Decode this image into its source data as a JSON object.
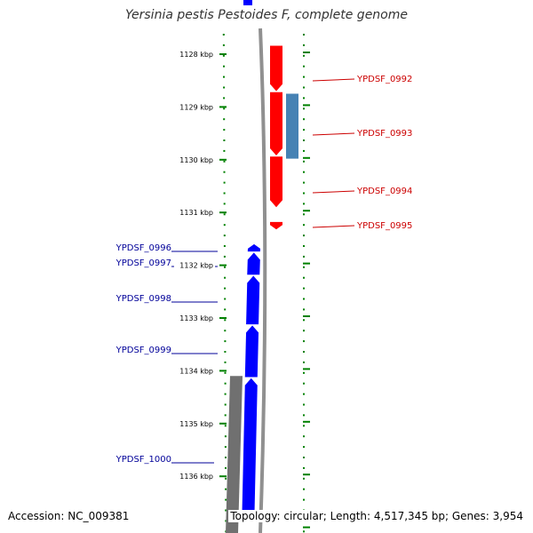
{
  "title": "Yersinia pestis Pestoides F, complete genome",
  "footer": {
    "accession_label": "Accession: NC_009381",
    "summary": "Topology: circular; Length: 4,517,345 bp; Genes: 3,954"
  },
  "colors": {
    "forward_gene": "#ff0000",
    "reverse_gene": "#0000ff",
    "forward_label": "#cc0000",
    "reverse_label": "#000099",
    "cds_feature": "#4682b4",
    "other_feature": "#707070",
    "ticks": "#008000",
    "backbone": "#909090"
  },
  "scale": {
    "unit": "kbp",
    "labels": [
      {
        "kbp": 1128,
        "text": "1128 kbp"
      },
      {
        "kbp": 1129,
        "text": "1129 kbp"
      },
      {
        "kbp": 1130,
        "text": "1130 kbp"
      },
      {
        "kbp": 1131,
        "text": "1131 kbp"
      },
      {
        "kbp": 1132,
        "text": "1132 kbp"
      },
      {
        "kbp": 1133,
        "text": "1133 kbp"
      },
      {
        "kbp": 1134,
        "text": "1134 kbp"
      },
      {
        "kbp": 1135,
        "text": "1135 kbp"
      },
      {
        "kbp": 1136,
        "text": "1136 kbp"
      }
    ]
  },
  "genes": [
    {
      "id": "YPDSF_0992",
      "label": "YPDSF_0992",
      "strand": "forward",
      "start_kbp": 1127.84,
      "end_kbp": 1128.7
    },
    {
      "id": "YPDSF_0993",
      "label": "YPDSF_0993",
      "strand": "forward",
      "start_kbp": 1128.72,
      "end_kbp": 1129.92
    },
    {
      "id": "YPDSF_0994",
      "label": "YPDSF_0994",
      "strand": "forward",
      "start_kbp": 1129.94,
      "end_kbp": 1130.9
    },
    {
      "id": "YPDSF_0995",
      "label": "YPDSF_0995",
      "strand": "forward",
      "start_kbp": 1131.18,
      "end_kbp": 1131.32
    },
    {
      "id": "YPDSF_0996",
      "label": "YPDSF_0996",
      "strand": "reverse",
      "start_kbp": 1131.6,
      "end_kbp": 1131.74
    },
    {
      "id": "YPDSF_0997",
      "label": "YPDSF_0997",
      "strand": "reverse",
      "start_kbp": 1131.76,
      "end_kbp": 1132.18
    },
    {
      "id": "YPDSF_0998",
      "label": "YPDSF_0998",
      "strand": "reverse",
      "start_kbp": 1132.2,
      "end_kbp": 1133.12
    },
    {
      "id": "YPDSF_0999",
      "label": "YPDSF_0999",
      "strand": "reverse",
      "start_kbp": 1133.14,
      "end_kbp": 1134.12
    },
    {
      "id": "YPDSF_1000",
      "label": "YPDSF_1000",
      "strand": "reverse",
      "start_kbp": 1134.14,
      "end_kbp": 1136.7
    }
  ],
  "features": [
    {
      "type": "cds",
      "start_kbp": 1128.75,
      "end_kbp": 1129.98
    },
    {
      "type": "other",
      "start_kbp": 1134.1,
      "end_kbp": 1136.7
    }
  ]
}
